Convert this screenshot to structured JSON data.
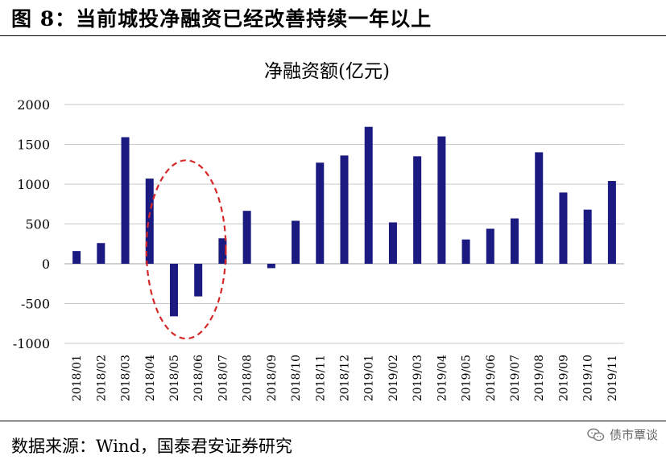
{
  "figure": {
    "title": "图 8：当前城投净融资已经改善持续一年以上",
    "source": "数据来源：Wind，国泰君安证券研究",
    "watermark": "债市覃谈"
  },
  "colors": {
    "bar": "#1a1a80",
    "grid": "#c8c8c8",
    "highlight": "#d62828"
  },
  "chart_data": {
    "type": "bar",
    "title": "净融资额(亿元)",
    "xlabel": "",
    "ylabel": "",
    "categories": [
      "2018/01",
      "2018/02",
      "2018/03",
      "2018/04",
      "2018/05",
      "2018/06",
      "2018/07",
      "2018/08",
      "2018/09",
      "2018/10",
      "2018/11",
      "2018/12",
      "2019/01",
      "2019/02",
      "2019/03",
      "2019/04",
      "2019/05",
      "2019/06",
      "2019/07",
      "2019/08",
      "2019/09",
      "2019/10",
      "2019/11"
    ],
    "values": [
      160,
      260,
      1590,
      1070,
      -660,
      -410,
      320,
      665,
      -55,
      540,
      1270,
      1360,
      1720,
      520,
      1350,
      1600,
      305,
      440,
      570,
      1400,
      895,
      680,
      1040
    ],
    "ylim": [
      -1000,
      2000
    ],
    "yticks": [
      -1000,
      -500,
      0,
      500,
      1000,
      1500,
      2000
    ],
    "ytick_labels": [
      "-1000",
      "-500",
      "0",
      "500",
      "1000",
      "1500",
      "2000"
    ],
    "grid": true,
    "legend": "none",
    "annotation": {
      "shape": "dashed-ellipse",
      "categories": [
        "2018/04",
        "2018/05",
        "2018/06",
        "2018/07"
      ]
    }
  }
}
